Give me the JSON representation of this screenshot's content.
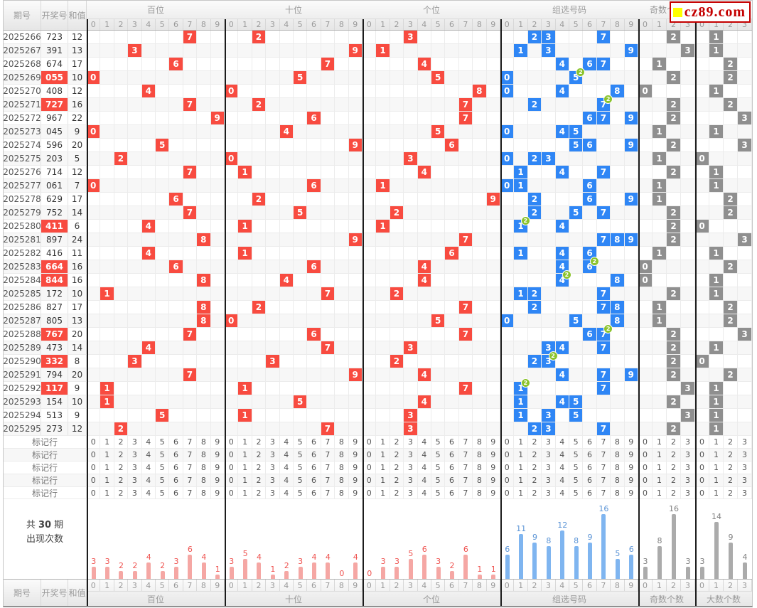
{
  "brand": {
    "logo_text": "cz89.com",
    "logo_color": "#c40000",
    "logo_square_color": "#ffff00"
  },
  "columns": {
    "issue": "期号",
    "number": "开奖号",
    "sum": "和值"
  },
  "sections": [
    {
      "key": "bai",
      "label": "百位",
      "digits": [
        "0",
        "1",
        "2",
        "3",
        "4",
        "5",
        "6",
        "7",
        "8",
        "9"
      ]
    },
    {
      "key": "shi",
      "label": "十位",
      "digits": [
        "0",
        "1",
        "2",
        "3",
        "4",
        "5",
        "6",
        "7",
        "8",
        "9"
      ]
    },
    {
      "key": "ge",
      "label": "个位",
      "digits": [
        "0",
        "1",
        "2",
        "3",
        "4",
        "5",
        "6",
        "7",
        "8",
        "9"
      ]
    },
    {
      "key": "zu",
      "label": "组选号码",
      "digits": [
        "0",
        "1",
        "2",
        "3",
        "4",
        "5",
        "6",
        "7",
        "8",
        "9"
      ]
    },
    {
      "key": "ji",
      "label": "奇数个数",
      "digits": [
        "0",
        "1",
        "2",
        "3"
      ]
    },
    {
      "key": "da",
      "label": "大数个数",
      "digits": [
        "0",
        "1",
        "2",
        "3"
      ]
    }
  ],
  "rows": [
    {
      "issue": "2025266",
      "num": "723",
      "sum": 12,
      "red": false,
      "badge": null,
      "ji": 2,
      "da": 1
    },
    {
      "issue": "2025267",
      "num": "391",
      "sum": 13,
      "red": false,
      "badge": null,
      "ji": 3,
      "da": 1
    },
    {
      "issue": "2025268",
      "num": "674",
      "sum": 17,
      "red": false,
      "badge": null,
      "ji": 1,
      "da": 2
    },
    {
      "issue": "2025269",
      "num": "055",
      "sum": 10,
      "red": true,
      "badge": 5,
      "ji": 2,
      "da": 2
    },
    {
      "issue": "2025270",
      "num": "408",
      "sum": 12,
      "red": false,
      "badge": null,
      "ji": 0,
      "da": 1
    },
    {
      "issue": "2025271",
      "num": "727",
      "sum": 16,
      "red": true,
      "badge": 7,
      "ji": 2,
      "da": 2
    },
    {
      "issue": "2025272",
      "num": "967",
      "sum": 22,
      "red": false,
      "badge": null,
      "ji": 2,
      "da": 3
    },
    {
      "issue": "2025273",
      "num": "045",
      "sum": 9,
      "red": false,
      "badge": null,
      "ji": 1,
      "da": 1
    },
    {
      "issue": "2025274",
      "num": "596",
      "sum": 20,
      "red": false,
      "badge": null,
      "ji": 2,
      "da": 3
    },
    {
      "issue": "2025275",
      "num": "203",
      "sum": 5,
      "red": false,
      "badge": null,
      "ji": 1,
      "da": 0
    },
    {
      "issue": "2025276",
      "num": "714",
      "sum": 12,
      "red": false,
      "badge": null,
      "ji": 2,
      "da": 1
    },
    {
      "issue": "2025277",
      "num": "061",
      "sum": 7,
      "red": false,
      "badge": null,
      "ji": 1,
      "da": 1
    },
    {
      "issue": "2025278",
      "num": "629",
      "sum": 17,
      "red": false,
      "badge": null,
      "ji": 1,
      "da": 2
    },
    {
      "issue": "2025279",
      "num": "752",
      "sum": 14,
      "red": false,
      "badge": null,
      "ji": 2,
      "da": 2
    },
    {
      "issue": "2025280",
      "num": "411",
      "sum": 6,
      "red": true,
      "badge": 1,
      "ji": 2,
      "da": 0
    },
    {
      "issue": "2025281",
      "num": "897",
      "sum": 24,
      "red": false,
      "badge": null,
      "ji": 2,
      "da": 3
    },
    {
      "issue": "2025282",
      "num": "416",
      "sum": 11,
      "red": false,
      "badge": null,
      "ji": 1,
      "da": 1
    },
    {
      "issue": "2025283",
      "num": "664",
      "sum": 16,
      "red": true,
      "badge": 6,
      "ji": 0,
      "da": 2
    },
    {
      "issue": "2025284",
      "num": "844",
      "sum": 16,
      "red": true,
      "badge": 4,
      "ji": 0,
      "da": 1
    },
    {
      "issue": "2025285",
      "num": "172",
      "sum": 10,
      "red": false,
      "badge": null,
      "ji": 2,
      "da": 1
    },
    {
      "issue": "2025286",
      "num": "827",
      "sum": 17,
      "red": false,
      "badge": null,
      "ji": 1,
      "da": 2
    },
    {
      "issue": "2025287",
      "num": "805",
      "sum": 13,
      "red": false,
      "badge": null,
      "ji": 1,
      "da": 2
    },
    {
      "issue": "2025288",
      "num": "767",
      "sum": 20,
      "red": true,
      "badge": 7,
      "ji": 2,
      "da": 3
    },
    {
      "issue": "2025289",
      "num": "473",
      "sum": 14,
      "red": false,
      "badge": null,
      "ji": 2,
      "da": 1
    },
    {
      "issue": "2025290",
      "num": "332",
      "sum": 8,
      "red": true,
      "badge": 3,
      "ji": 2,
      "da": 0
    },
    {
      "issue": "2025291",
      "num": "794",
      "sum": 20,
      "red": false,
      "badge": null,
      "ji": 2,
      "da": 2
    },
    {
      "issue": "2025292",
      "num": "117",
      "sum": 9,
      "red": true,
      "badge": 1,
      "ji": 3,
      "da": 1
    },
    {
      "issue": "2025293",
      "num": "154",
      "sum": 10,
      "red": false,
      "badge": null,
      "ji": 2,
      "da": 1
    },
    {
      "issue": "2025294",
      "num": "513",
      "sum": 9,
      "red": false,
      "badge": null,
      "ji": 3,
      "da": 1
    },
    {
      "issue": "2025295",
      "num": "273",
      "sum": 12,
      "red": false,
      "badge": null,
      "ji": 2,
      "da": 1
    }
  ],
  "mark_row_label": "标记行",
  "mark_rows_count": 5,
  "stats_label": {
    "prefix": "共",
    "count": "30",
    "suffix": "期",
    "line2": "出现次数"
  },
  "chart_data": {
    "type": "bar",
    "title": "共30期出现次数",
    "legend_position": "none",
    "grid": false,
    "series": [
      {
        "name": "百位",
        "categories": [
          "0",
          "1",
          "2",
          "3",
          "4",
          "5",
          "6",
          "7",
          "8",
          "9"
        ],
        "values": [
          3,
          3,
          2,
          2,
          4,
          2,
          3,
          6,
          4,
          1
        ],
        "bar_color": "#f5a7a4",
        "label_color": "#ef5350"
      },
      {
        "name": "十位",
        "categories": [
          "0",
          "1",
          "2",
          "3",
          "4",
          "5",
          "6",
          "7",
          "8",
          "9"
        ],
        "values": [
          3,
          5,
          4,
          1,
          2,
          3,
          4,
          4,
          0,
          4
        ],
        "bar_color": "#f5a7a4",
        "label_color": "#ef5350"
      },
      {
        "name": "个位",
        "categories": [
          "0",
          "1",
          "2",
          "3",
          "4",
          "5",
          "6",
          "7",
          "8",
          "9"
        ],
        "values": [
          0,
          3,
          3,
          5,
          6,
          3,
          2,
          6,
          1,
          1
        ],
        "bar_color": "#f5a7a4",
        "label_color": "#ef5350"
      },
      {
        "name": "组选号码",
        "categories": [
          "0",
          "1",
          "2",
          "3",
          "4",
          "5",
          "6",
          "7",
          "8",
          "9"
        ],
        "values": [
          6,
          11,
          9,
          8,
          12,
          8,
          9,
          16,
          5,
          6
        ],
        "bar_color": "#7fb5f0",
        "label_color": "#5b94d6"
      },
      {
        "name": "奇数个数",
        "categories": [
          "0",
          "1",
          "2",
          "3"
        ],
        "values": [
          3,
          8,
          16,
          3
        ],
        "bar_color": "#ababab",
        "label_color": "#808080"
      },
      {
        "name": "大数个数",
        "categories": [
          "0",
          "1",
          "2",
          "3"
        ],
        "values": [
          3,
          14,
          9,
          4
        ],
        "bar_color": "#ababab",
        "label_color": "#808080"
      }
    ]
  },
  "colors": {
    "hit_red": "#f84b40",
    "hit_blue": "#2f86f5",
    "hit_gray": "#8f8f8f",
    "badge_green": "#8bc32c"
  }
}
